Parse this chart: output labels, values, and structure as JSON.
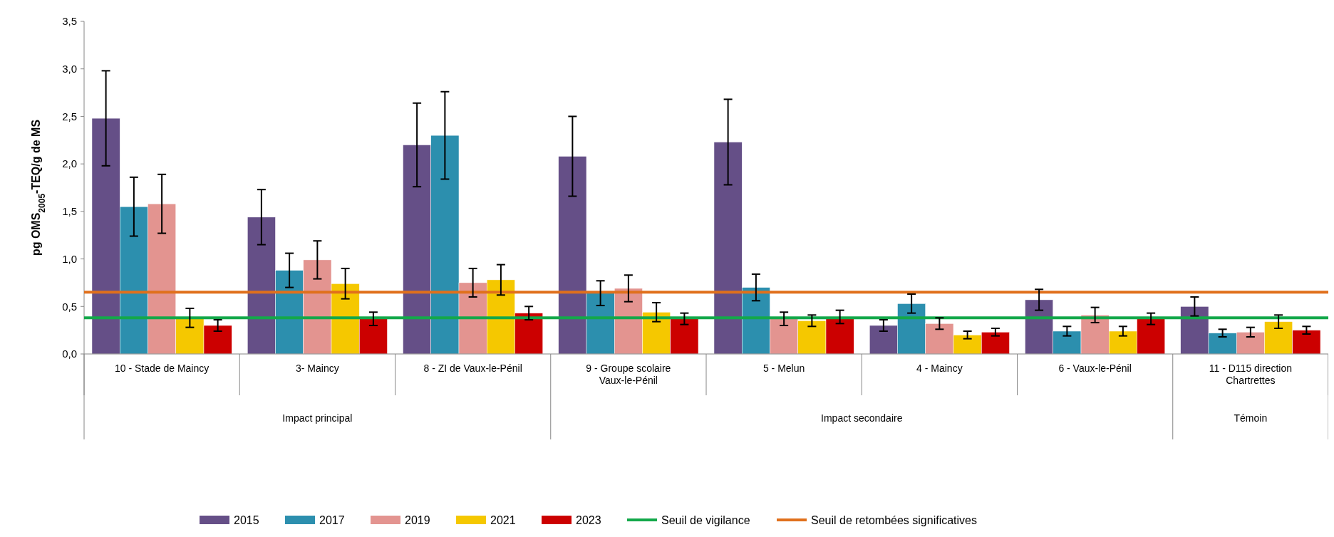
{
  "chart_data": {
    "type": "bar",
    "ylabel": "pg OMS$_{2005}$-TEQ/g de MS",
    "categories": [
      "10 - Stade de Maincy",
      "3- Maincy",
      "8 - ZI de Vaux-le-Pénil",
      "9 - Groupe scolaire Vaux-le-Pénil",
      "5 - Melun",
      "4 - Maincy",
      "6 - Vaux-le-Pénil",
      "11 - D115 direction Chartrettes"
    ],
    "series": [
      {
        "name": "2015",
        "color": "#654f87",
        "values": [
          2.48,
          1.44,
          2.2,
          2.08,
          2.23,
          0.3,
          0.57,
          0.5
        ],
        "errors": [
          0.5,
          0.29,
          0.44,
          0.42,
          0.45,
          0.06,
          0.11,
          0.1
        ]
      },
      {
        "name": "2017",
        "color": "#2c8fae",
        "values": [
          1.55,
          0.88,
          2.3,
          0.64,
          0.7,
          0.53,
          0.24,
          0.22
        ],
        "errors": [
          0.31,
          0.18,
          0.46,
          0.13,
          0.14,
          0.1,
          0.05,
          0.04
        ]
      },
      {
        "name": "2019",
        "color": "#e39490",
        "values": [
          1.58,
          0.99,
          0.75,
          0.69,
          0.37,
          0.32,
          0.41,
          0.23
        ],
        "errors": [
          0.31,
          0.2,
          0.15,
          0.14,
          0.07,
          0.06,
          0.08,
          0.05
        ]
      },
      {
        "name": "2021",
        "color": "#f5c800",
        "values": [
          0.38,
          0.74,
          0.78,
          0.44,
          0.35,
          0.2,
          0.24,
          0.34
        ],
        "errors": [
          0.1,
          0.16,
          0.16,
          0.1,
          0.06,
          0.04,
          0.05,
          0.07
        ]
      },
      {
        "name": "2023",
        "color": "#cc0000",
        "values": [
          0.3,
          0.37,
          0.43,
          0.37,
          0.39,
          0.23,
          0.37,
          0.25
        ],
        "errors": [
          0.06,
          0.07,
          0.07,
          0.06,
          0.07,
          0.04,
          0.06,
          0.04
        ]
      }
    ],
    "ref_lines": [
      {
        "axis": "y",
        "value": 0.38,
        "label": "Seuil de vigilance",
        "color": "#13a84a"
      },
      {
        "axis": "y",
        "value": 0.65,
        "label": "Seuil de retombées significatives",
        "color": "#e0701c"
      }
    ],
    "annotations": [
      "Impact principal",
      "Impact secondaire",
      "Témoin"
    ],
    "ylim": [
      0,
      3.5
    ],
    "yticks": [
      {
        "value": 0,
        "label": "0,0"
      },
      {
        "value": 0.5,
        "label": "0,5"
      },
      {
        "value": 1,
        "label": "1,0"
      },
      {
        "value": 1.5,
        "label": "1,5"
      },
      {
        "value": 2,
        "label": "2,0"
      },
      {
        "value": 2.5,
        "label": "2,5"
      },
      {
        "value": 3,
        "label": "3,0"
      },
      {
        "value": 3.5,
        "label": "3,5"
      }
    ],
    "grid": false,
    "legend": "bottom"
  }
}
